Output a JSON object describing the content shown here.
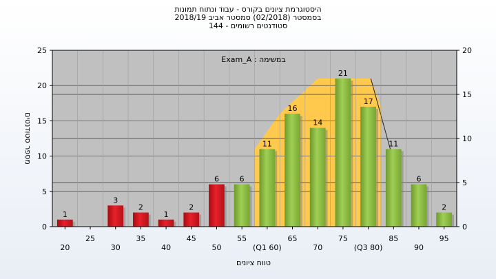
{
  "chart_data": {
    "type": "bar",
    "title_lines": [
      "היסטוגרמת ציונים בקורס - עבוד ונתוח תמונות",
      "בסמסטר  (02/2018)  סמסטר אביב 2018/19",
      "סטודנטים רשומים - 144"
    ],
    "annotation": "במשימה : Exam_A",
    "xlabel": "טווח ציונים",
    "ylabel": "מספר סטודנטים",
    "ylim": [
      0,
      25
    ],
    "y_ticks": [
      0,
      5,
      10,
      15,
      20,
      25
    ],
    "y2lim": [
      0,
      20
    ],
    "y2_ticks": [
      0,
      5,
      10,
      15,
      20
    ],
    "x_ticks": [
      "20",
      "25",
      "30",
      "35",
      "40",
      "45",
      "50",
      "55",
      "(Q1 60)",
      "65",
      "70",
      "75",
      "(Q3 80)",
      "85",
      "90",
      "95"
    ],
    "categories": [
      "20",
      "25",
      "30",
      "35",
      "40",
      "45",
      "50",
      "55",
      "60",
      "65",
      "70",
      "75",
      "80",
      "85",
      "90",
      "95"
    ],
    "values": [
      1,
      0,
      3,
      2,
      1,
      2,
      6,
      6,
      11,
      16,
      14,
      21,
      17,
      11,
      6,
      2
    ],
    "data_labels": [
      "1",
      "",
      "3",
      "2",
      "1",
      "2",
      "6",
      "6",
      "11",
      "16",
      "14",
      "21",
      "17",
      "11",
      "6",
      "2"
    ],
    "bar_colors": [
      "red",
      "red",
      "red",
      "red",
      "red",
      "red",
      "red",
      "green",
      "green",
      "green",
      "green",
      "green",
      "green",
      "green",
      "green",
      "green"
    ],
    "iqr_band": {
      "from": "60",
      "to": "80"
    },
    "colors": {
      "plot_bg": "#c0c0c0",
      "red_bar": "#e8202a",
      "green_bar": "#9fcf55",
      "iqr_fill": "#ffc94d"
    },
    "grid": true,
    "legend": "none"
  }
}
